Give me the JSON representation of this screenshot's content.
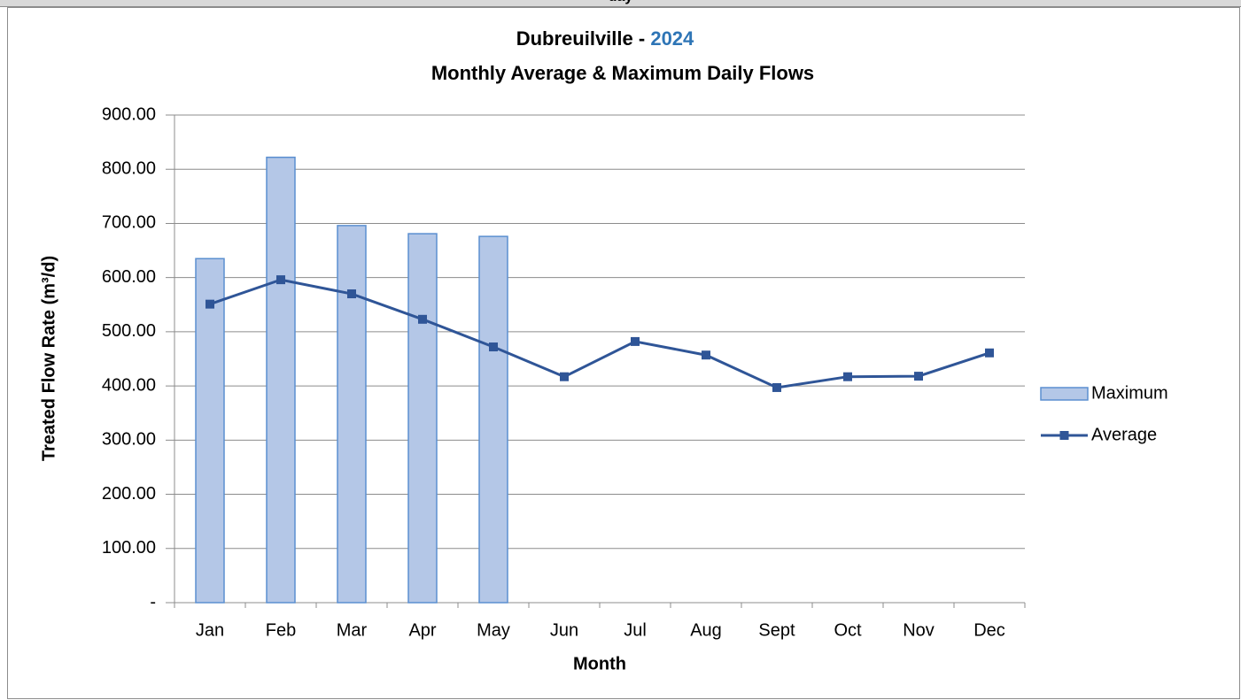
{
  "header_text": "day",
  "chart_data": {
    "type": "bar-line",
    "title": "Dubreuilville -",
    "title_year": "2024",
    "subtitle": "Monthly Average & Maximum Daily Flows",
    "y_label": "Treated Flow Rate (m³/d)",
    "x_label": "Month",
    "categories": [
      "Jan",
      "Feb",
      "Mar",
      "Apr",
      "May",
      "Jun",
      "Jul",
      "Aug",
      "Sept",
      "Oct",
      "Nov",
      "Dec"
    ],
    "series": [
      {
        "name": "Maximum",
        "type": "bar",
        "color": "#b4c7e7",
        "edge_color": "#5b8fd0",
        "values": [
          635,
          822,
          696,
          681,
          676,
          null,
          null,
          null,
          null,
          null,
          null,
          null
        ]
      },
      {
        "name": "Average",
        "type": "line",
        "color": "#2f5597",
        "values": [
          551,
          596,
          570,
          523,
          472,
          417,
          482,
          457,
          397,
          417,
          418,
          461
        ]
      }
    ],
    "ylim": [
      0,
      900
    ],
    "yticks": [
      {
        "value": 0,
        "label": "-"
      },
      {
        "value": 100,
        "label": "100.00"
      },
      {
        "value": 200,
        "label": "200.00"
      },
      {
        "value": 300,
        "label": "300.00"
      },
      {
        "value": 400,
        "label": "400.00"
      },
      {
        "value": 500,
        "label": "500.00"
      },
      {
        "value": 600,
        "label": "600.00"
      },
      {
        "value": 700,
        "label": "700.00"
      },
      {
        "value": 800,
        "label": "800.00"
      },
      {
        "value": 900,
        "label": "900.00"
      }
    ],
    "grid": true,
    "legend": "right"
  }
}
